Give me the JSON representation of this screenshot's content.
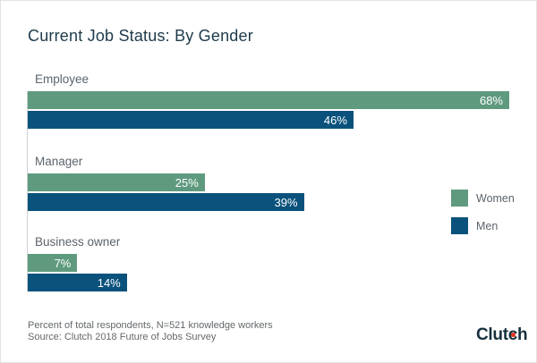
{
  "chart_data": {
    "type": "bar",
    "orientation": "horizontal",
    "title": "Current Job Status: By Gender",
    "categories": [
      "Employee",
      "Manager",
      "Business owner"
    ],
    "series": [
      {
        "name": "Women",
        "color": "#5f9a7f",
        "values": [
          68,
          25,
          7
        ],
        "labels": [
          "68%",
          "25%",
          "7%"
        ]
      },
      {
        "name": "Men",
        "color": "#0a527c",
        "values": [
          46,
          39,
          14
        ],
        "labels": [
          "46%",
          "39%",
          "14%"
        ]
      }
    ],
    "scale_max": 68,
    "grid": false,
    "legend_position": "right"
  },
  "footer": {
    "line1": "Percent of total respondents, N=521 knowledge workers",
    "line2": "Source: Clutch 2018 Future of Jobs Survey"
  },
  "logo": {
    "part1": "Clut",
    "part2": "c",
    "part3": "h",
    "dot_color": "#e13a23"
  }
}
